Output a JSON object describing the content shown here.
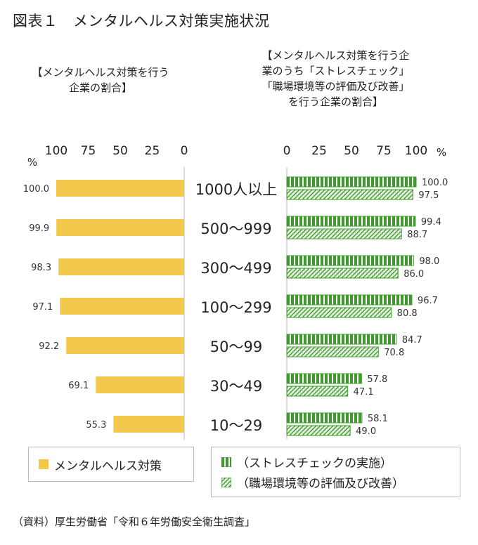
{
  "title": "図表１　メンタルヘルス対策実施状況",
  "source": "（資料）厚生労働省「令和６年労働安全衛生調査」",
  "colors": {
    "bar": "#F2C94C",
    "green": "#3E9A2C",
    "green_light": "#9BD38A"
  },
  "chart_data": [
    {
      "type": "bar",
      "orientation": "horizontal",
      "direction": "right-to-left",
      "title_lines": [
        "【メンタルヘルス対策を行う",
        "企業の割合】"
      ],
      "unit": "%",
      "xlim": [
        0,
        100
      ],
      "ticks": [
        100,
        75,
        50,
        25,
        0
      ],
      "tick_labels": [
        "100",
        "75",
        "50",
        "25",
        "0"
      ],
      "categories": [
        "1000人以上",
        "500～999",
        "300～499",
        "100～299",
        "50～99",
        "30～49",
        "10～29"
      ],
      "series": [
        {
          "name": "メンタルヘルス対策",
          "values": [
            100.0,
            99.9,
            98.3,
            97.1,
            92.2,
            69.1,
            55.3
          ],
          "labels": [
            "100.0",
            "99.9",
            "98.3",
            "97.1",
            "92.2",
            "69.1",
            "55.3"
          ]
        }
      ]
    },
    {
      "type": "bar",
      "orientation": "horizontal",
      "direction": "left-to-right",
      "title_lines": [
        "【メンタルヘルス対策を行う企",
        "業のうち「ストレスチェック」",
        "「職場環境等の評価及び改善」",
        "を行う企業の割合】"
      ],
      "unit": "%",
      "xlim": [
        0,
        100
      ],
      "ticks": [
        0,
        25,
        50,
        75,
        100
      ],
      "tick_labels": [
        "0",
        "25",
        "50",
        "75",
        "100"
      ],
      "categories": [
        "1000人以上",
        "500～999",
        "300～499",
        "100～299",
        "50～99",
        "30～49",
        "10～29"
      ],
      "series": [
        {
          "name": "（ストレスチェックの実施）",
          "values": [
            100.0,
            99.4,
            98.0,
            96.7,
            84.7,
            57.8,
            58.1
          ],
          "labels": [
            "100.0",
            "99.4",
            "98.0",
            "96.7",
            "84.7",
            "57.8",
            "58.1"
          ]
        },
        {
          "name": "（職場環境等の評価及び改善）",
          "values": [
            97.5,
            88.7,
            86.0,
            80.8,
            70.8,
            47.1,
            49.0
          ],
          "labels": [
            "97.5",
            "88.7",
            "86.0",
            "80.8",
            "70.8",
            "47.1",
            "49.0"
          ]
        }
      ]
    }
  ]
}
